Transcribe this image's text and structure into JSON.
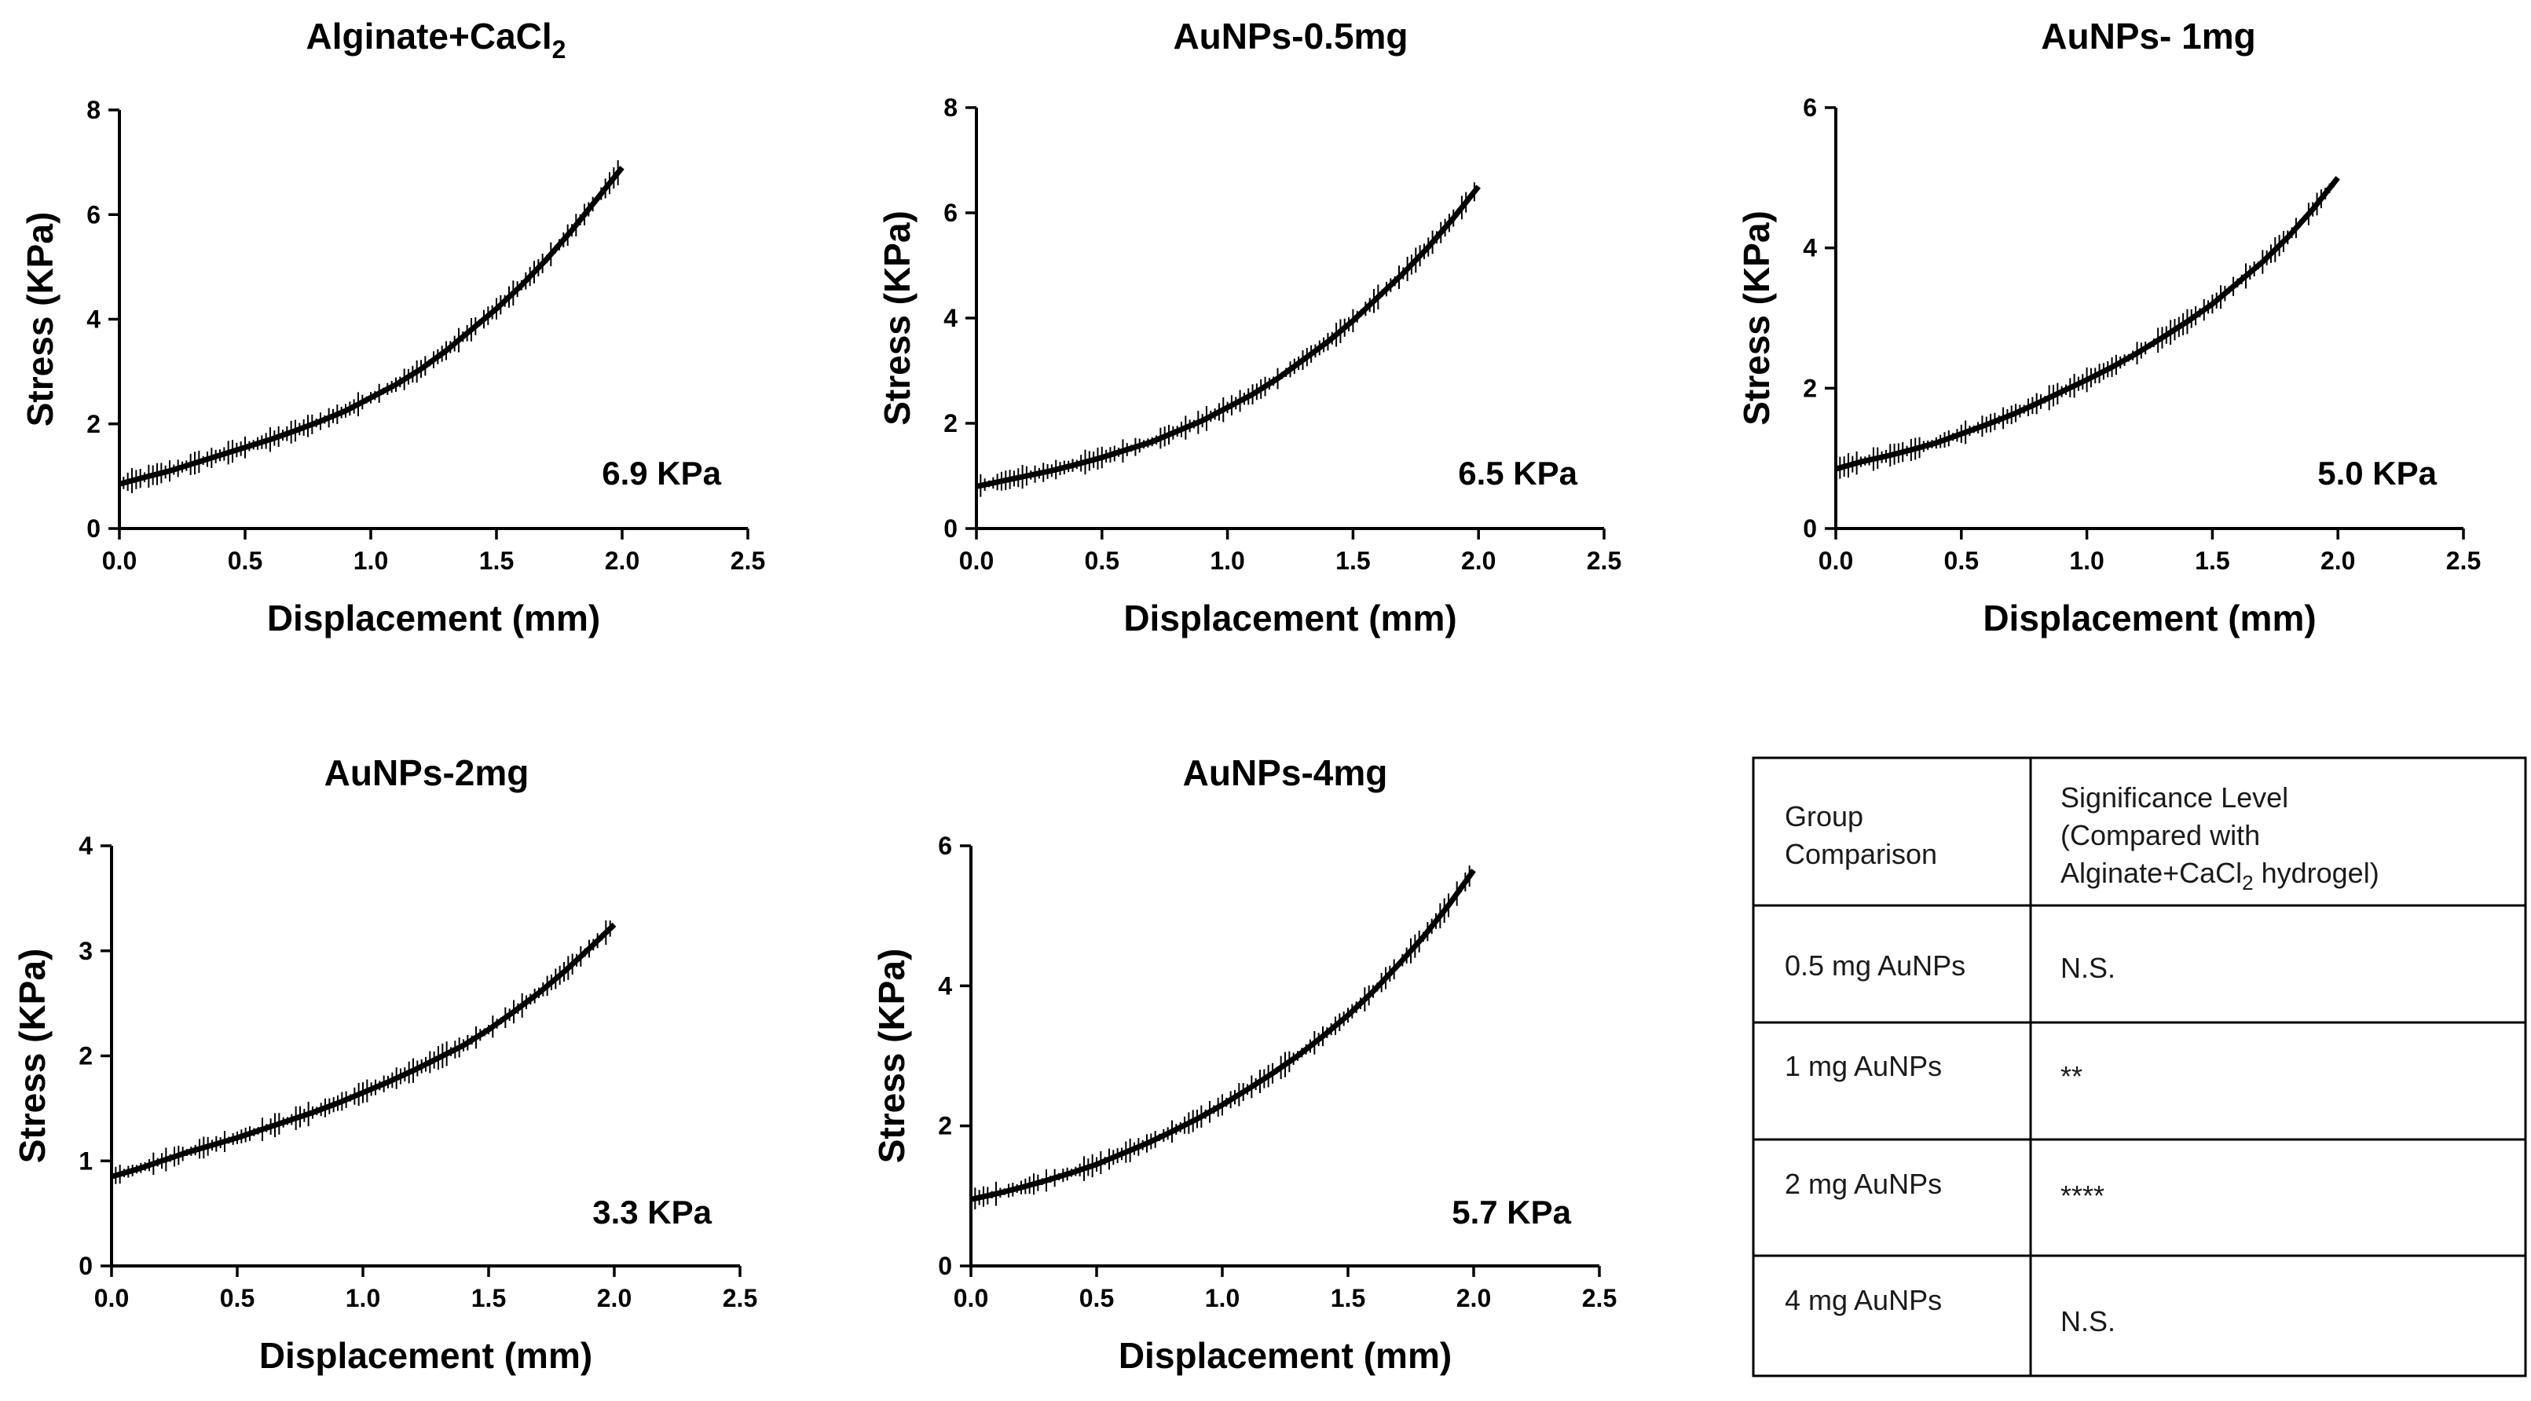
{
  "chart_data": [
    {
      "type": "line",
      "title": "Alginate+CaCl",
      "title_subscript": "2",
      "xlabel": "Displacement (mm)",
      "ylabel": "Stress (KPa)",
      "xlim": [
        0,
        2.5
      ],
      "ylim": [
        0,
        8
      ],
      "xticks": [
        "0.0",
        "0.5",
        "1.0",
        "1.5",
        "2.0",
        "2.5"
      ],
      "yticks": [
        "0",
        "2",
        "4",
        "6",
        "8"
      ],
      "annotation": "6.9 KPa",
      "series": [
        {
          "x": [
            0.0,
            0.1,
            0.2,
            0.3,
            0.4,
            0.5,
            0.6,
            0.7,
            0.8,
            0.9,
            1.0,
            1.1,
            1.2,
            1.3,
            1.4,
            1.5,
            1.6,
            1.7,
            1.8,
            1.9,
            2.0
          ],
          "y": [
            0.85,
            0.98,
            1.1,
            1.25,
            1.4,
            1.55,
            1.7,
            1.87,
            2.05,
            2.25,
            2.5,
            2.75,
            3.05,
            3.4,
            3.8,
            4.2,
            4.65,
            5.15,
            5.7,
            6.3,
            6.9
          ]
        }
      ]
    },
    {
      "type": "line",
      "title": "AuNPs-0.5mg",
      "xlabel": "Displacement (mm)",
      "ylabel": "Stress (KPa)",
      "xlim": [
        0,
        2.5
      ],
      "ylim": [
        0,
        8
      ],
      "xticks": [
        "0.0",
        "0.5",
        "1.0",
        "1.5",
        "2.0",
        "2.5"
      ],
      "yticks": [
        "0",
        "2",
        "4",
        "6",
        "8"
      ],
      "annotation": "6.5 KPa",
      "series": [
        {
          "x": [
            0.0,
            0.1,
            0.2,
            0.3,
            0.4,
            0.5,
            0.6,
            0.7,
            0.8,
            0.9,
            1.0,
            1.1,
            1.2,
            1.3,
            1.4,
            1.5,
            1.6,
            1.7,
            1.8,
            1.9,
            2.0
          ],
          "y": [
            0.8,
            0.9,
            1.0,
            1.1,
            1.22,
            1.35,
            1.5,
            1.65,
            1.85,
            2.05,
            2.3,
            2.55,
            2.85,
            3.2,
            3.55,
            3.95,
            4.4,
            4.85,
            5.35,
            5.9,
            6.5
          ]
        }
      ]
    },
    {
      "type": "line",
      "title": "AuNPs- 1mg",
      "xlabel": "Displacement (mm)",
      "ylabel": "Stress (KPa)",
      "xlim": [
        0,
        2.5
      ],
      "ylim": [
        0,
        6
      ],
      "xticks": [
        "0.0",
        "0.5",
        "1.0",
        "1.5",
        "2.0",
        "2.5"
      ],
      "yticks": [
        "0",
        "2",
        "4",
        "6"
      ],
      "annotation": "5.0 KPa",
      "series": [
        {
          "x": [
            0.0,
            0.1,
            0.2,
            0.3,
            0.4,
            0.5,
            0.6,
            0.7,
            0.8,
            0.9,
            1.0,
            1.1,
            1.2,
            1.3,
            1.4,
            1.5,
            1.6,
            1.7,
            1.8,
            1.9,
            2.0
          ],
          "y": [
            0.85,
            0.95,
            1.03,
            1.12,
            1.22,
            1.35,
            1.48,
            1.62,
            1.78,
            1.95,
            2.12,
            2.3,
            2.5,
            2.72,
            2.95,
            3.2,
            3.5,
            3.8,
            4.15,
            4.55,
            5.0
          ]
        }
      ]
    },
    {
      "type": "line",
      "title": "AuNPs-2mg",
      "xlabel": "Displacement (mm)",
      "ylabel": "Stress (KPa)",
      "xlim": [
        0,
        2.5
      ],
      "ylim": [
        0,
        4
      ],
      "xticks": [
        "0.0",
        "0.5",
        "1.0",
        "1.5",
        "2.0",
        "2.5"
      ],
      "yticks": [
        "0",
        "1",
        "2",
        "3",
        "4"
      ],
      "annotation": "3.3 KPa",
      "series": [
        {
          "x": [
            0.0,
            0.1,
            0.2,
            0.3,
            0.4,
            0.5,
            0.6,
            0.7,
            0.8,
            0.9,
            1.0,
            1.1,
            1.2,
            1.3,
            1.4,
            1.5,
            1.6,
            1.7,
            1.8,
            1.9,
            2.0
          ],
          "y": [
            0.85,
            0.92,
            1.0,
            1.08,
            1.15,
            1.22,
            1.3,
            1.38,
            1.46,
            1.55,
            1.65,
            1.75,
            1.86,
            1.98,
            2.1,
            2.25,
            2.42,
            2.6,
            2.8,
            3.02,
            3.25
          ]
        }
      ]
    },
    {
      "type": "line",
      "title": "AuNPs-4mg",
      "xlabel": "Displacement (mm)",
      "ylabel": "Stress (KPa)",
      "xlim": [
        0,
        2.5
      ],
      "ylim": [
        0,
        6
      ],
      "xticks": [
        "0.0",
        "0.5",
        "1.0",
        "1.5",
        "2.0",
        "2.5"
      ],
      "yticks": [
        "0",
        "2",
        "4",
        "6"
      ],
      "annotation": "5.7 KPa",
      "series": [
        {
          "x": [
            0.0,
            0.1,
            0.2,
            0.3,
            0.4,
            0.5,
            0.6,
            0.7,
            0.8,
            0.9,
            1.0,
            1.1,
            1.2,
            1.3,
            1.4,
            1.5,
            1.6,
            1.7,
            1.8,
            1.9,
            2.0
          ],
          "y": [
            0.95,
            1.03,
            1.12,
            1.22,
            1.33,
            1.45,
            1.6,
            1.75,
            1.92,
            2.1,
            2.3,
            2.52,
            2.75,
            3.0,
            3.28,
            3.58,
            3.92,
            4.3,
            4.7,
            5.15,
            5.65
          ]
        }
      ]
    },
    {
      "type": "table",
      "header": {
        "col1": [
          "Group",
          "Comparison"
        ],
        "col2_line1": "Significance Level",
        "col2_line2": "(Compared with",
        "col2_line3_main": "Alginate+CaCl",
        "col2_line3_sub": "2",
        "col2_line3_tail": " hydrogel)"
      },
      "rows": [
        {
          "group": "0.5 mg AuNPs",
          "significance": "N.S."
        },
        {
          "group": "1 mg AuNPs",
          "significance": "**"
        },
        {
          "group": "2 mg AuNPs",
          "significance": "****"
        },
        {
          "group": "4 mg AuNPs",
          "significance": "N.S."
        }
      ]
    }
  ]
}
